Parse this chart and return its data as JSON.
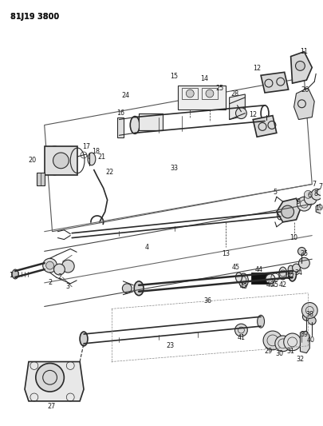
{
  "title": "81J19 3800",
  "bg_color": "#ffffff",
  "line_color": "#2a2a2a",
  "text_color": "#1a1a1a",
  "fig_width": 4.06,
  "fig_height": 5.33,
  "dpi": 100,
  "label_fs": 5.8,
  "title_fs": 7.0
}
